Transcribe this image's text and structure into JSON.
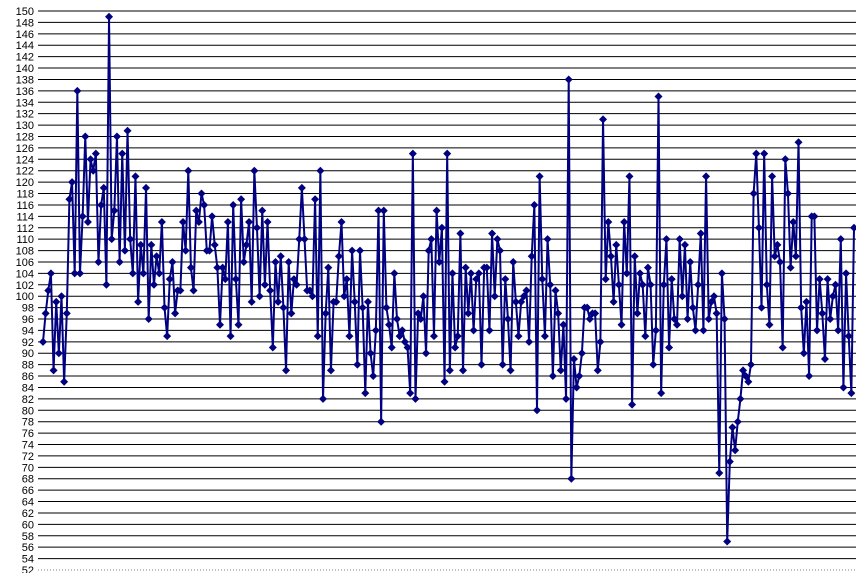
{
  "chart_data": {
    "type": "line",
    "title": "",
    "xlabel": "",
    "ylabel": "",
    "ylim": [
      52,
      150
    ],
    "ytick_step": 2,
    "grid": true,
    "legend": "none",
    "colors": {
      "series": "#000080",
      "grid": "#000000",
      "baseline": "#808080"
    },
    "series": [
      {
        "values": [
          92,
          97,
          101,
          104,
          87,
          99,
          90,
          100,
          85,
          97,
          117,
          120,
          104,
          136,
          104,
          114,
          128,
          113,
          124,
          122,
          125,
          106,
          116,
          119,
          102,
          149,
          110,
          115,
          128,
          106,
          125,
          108,
          129,
          110,
          104,
          121,
          99,
          109,
          104,
          119,
          96,
          109,
          102,
          107,
          104,
          113,
          98,
          93,
          103,
          106,
          97,
          101,
          101,
          113,
          108,
          122,
          105,
          101,
          115,
          113,
          118,
          116,
          108,
          108,
          114,
          109,
          105,
          95,
          105,
          103,
          113,
          93,
          116,
          103,
          95,
          117,
          106,
          109,
          113,
          99,
          122,
          112,
          100,
          115,
          102,
          113,
          101,
          91,
          106,
          99,
          107,
          98,
          87,
          106,
          97,
          103,
          102,
          110,
          119,
          110,
          101,
          101,
          100,
          117,
          93,
          122,
          82,
          97,
          105,
          87,
          99,
          99,
          107,
          113,
          100,
          103,
          93,
          108,
          99,
          88,
          108,
          98,
          83,
          99,
          90,
          86,
          94,
          115,
          78,
          115,
          98,
          95,
          91,
          104,
          96,
          93,
          94,
          92,
          91,
          83,
          125,
          82,
          97,
          96,
          100,
          90,
          108,
          110,
          93,
          115,
          106,
          112,
          85,
          125,
          87,
          104,
          91,
          93,
          111,
          87,
          105,
          97,
          104,
          94,
          103,
          104,
          88,
          105,
          105,
          94,
          111,
          100,
          110,
          108,
          88,
          103,
          96,
          87,
          106,
          99,
          93,
          99,
          100,
          101,
          92,
          107,
          116,
          80,
          121,
          103,
          93,
          110,
          102,
          86,
          101,
          97,
          87,
          95,
          82,
          138,
          68,
          89,
          84,
          86,
          90,
          98,
          98,
          96,
          97,
          97,
          87,
          92,
          131,
          103,
          113,
          107,
          99,
          109,
          102,
          95,
          113,
          104,
          121,
          81,
          107,
          97,
          104,
          102,
          93,
          105,
          102,
          88,
          94,
          135,
          83,
          102,
          110,
          91,
          103,
          96,
          95,
          110,
          100,
          109,
          96,
          106,
          98,
          94,
          102,
          111,
          94,
          121,
          96,
          99,
          100,
          97,
          69,
          104,
          96,
          57,
          71,
          77,
          73,
          78,
          82,
          87,
          86,
          85,
          88,
          118,
          125,
          112,
          98,
          125,
          102,
          95,
          121,
          107,
          109,
          106,
          91,
          124,
          118,
          105,
          113,
          107,
          127,
          98,
          90,
          99,
          86,
          114,
          114,
          94,
          103,
          97,
          89,
          103,
          96,
          100,
          102,
          94,
          110,
          84,
          104,
          93,
          83,
          112
        ]
      }
    ]
  }
}
